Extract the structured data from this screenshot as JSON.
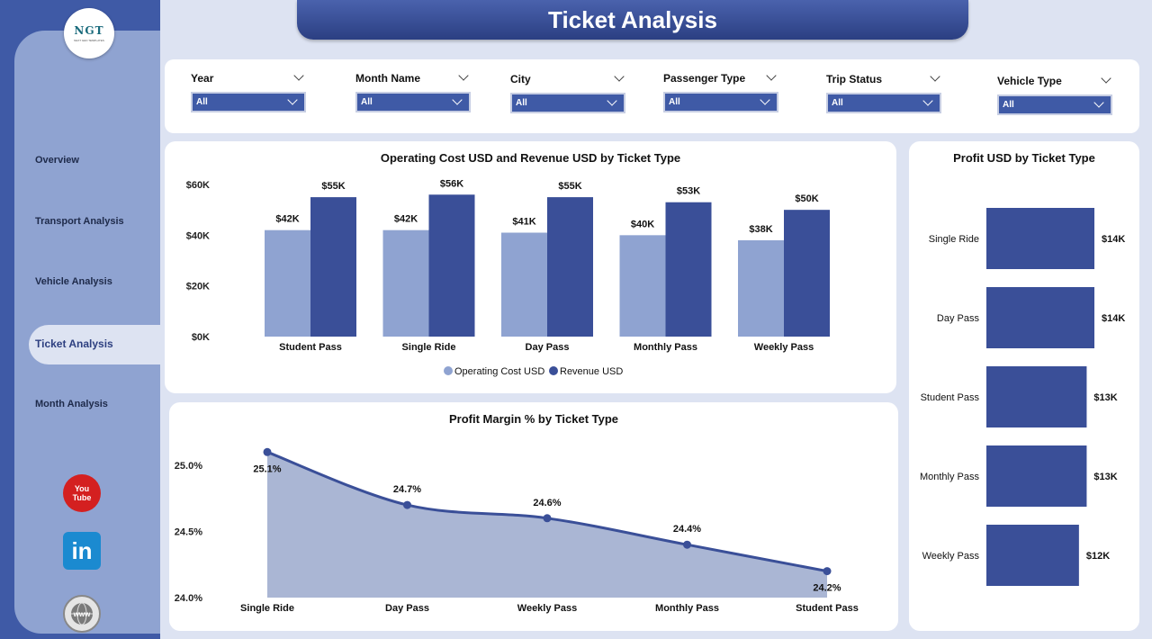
{
  "page_title": "Ticket Analysis",
  "logo": {
    "text": "NGT",
    "sub": "NEXT GEN TEMPLATES"
  },
  "sidebar": {
    "items": [
      {
        "label": "Overview"
      },
      {
        "label": "Transport Analysis"
      },
      {
        "label": "Vehicle Analysis"
      },
      {
        "label": "Ticket Analysis",
        "active": true
      },
      {
        "label": "Month Analysis"
      }
    ],
    "social": {
      "youtube": [
        "You",
        "Tube"
      ],
      "linkedin": "in",
      "web": "www"
    }
  },
  "filters": [
    {
      "label": "Year",
      "value": "All"
    },
    {
      "label": "Month Name",
      "value": "All"
    },
    {
      "label": "City",
      "value": "All"
    },
    {
      "label": "Passenger Type",
      "value": "All"
    },
    {
      "label": "Trip Status",
      "value": "All"
    },
    {
      "label": "Vehicle Type",
      "value": "All"
    }
  ],
  "colors": {
    "operating_cost": "#8fa3d1",
    "revenue": "#3a4f98",
    "profit": "#3a4f98",
    "accent": "#3f5aa6"
  },
  "chart_data": [
    {
      "type": "bar",
      "title": "Operating Cost USD and Revenue USD by Ticket Type",
      "categories": [
        "Student Pass",
        "Single Ride",
        "Day Pass",
        "Monthly Pass",
        "Weekly Pass"
      ],
      "series": [
        {
          "name": "Operating Cost USD",
          "values": [
            42000,
            42000,
            41000,
            40000,
            38000
          ],
          "labels": [
            "$42K",
            "$42K",
            "$41K",
            "$40K",
            "$38K"
          ]
        },
        {
          "name": "Revenue USD",
          "values": [
            55000,
            56000,
            55000,
            53000,
            50000
          ],
          "labels": [
            "$55K",
            "$56K",
            "$55K",
            "$53K",
            "$50K"
          ]
        }
      ],
      "yticks": [
        "$0K",
        "$20K",
        "$40K",
        "$60K"
      ],
      "ylim": [
        0,
        60000
      ],
      "legend": "bottom"
    },
    {
      "type": "bar",
      "orientation": "horizontal",
      "title": "Profit USD by Ticket Type",
      "categories": [
        "Single Ride",
        "Day Pass",
        "Student Pass",
        "Monthly Pass",
        "Weekly Pass"
      ],
      "values": [
        14000,
        14000,
        13000,
        13000,
        12000
      ],
      "labels": [
        "$14K",
        "$14K",
        "$13K",
        "$13K",
        "$12K"
      ]
    },
    {
      "type": "area",
      "title": "Profit Margin % by Ticket Type",
      "categories": [
        "Single Ride",
        "Day Pass",
        "Weekly Pass",
        "Monthly Pass",
        "Student Pass"
      ],
      "values": [
        25.1,
        24.7,
        24.6,
        24.4,
        24.2
      ],
      "labels": [
        "25.1%",
        "24.7%",
        "24.6%",
        "24.4%",
        "24.2%"
      ],
      "yticks": [
        "24.0%",
        "24.5%",
        "25.0%"
      ],
      "ylim": [
        24.0,
        25.1
      ]
    }
  ]
}
